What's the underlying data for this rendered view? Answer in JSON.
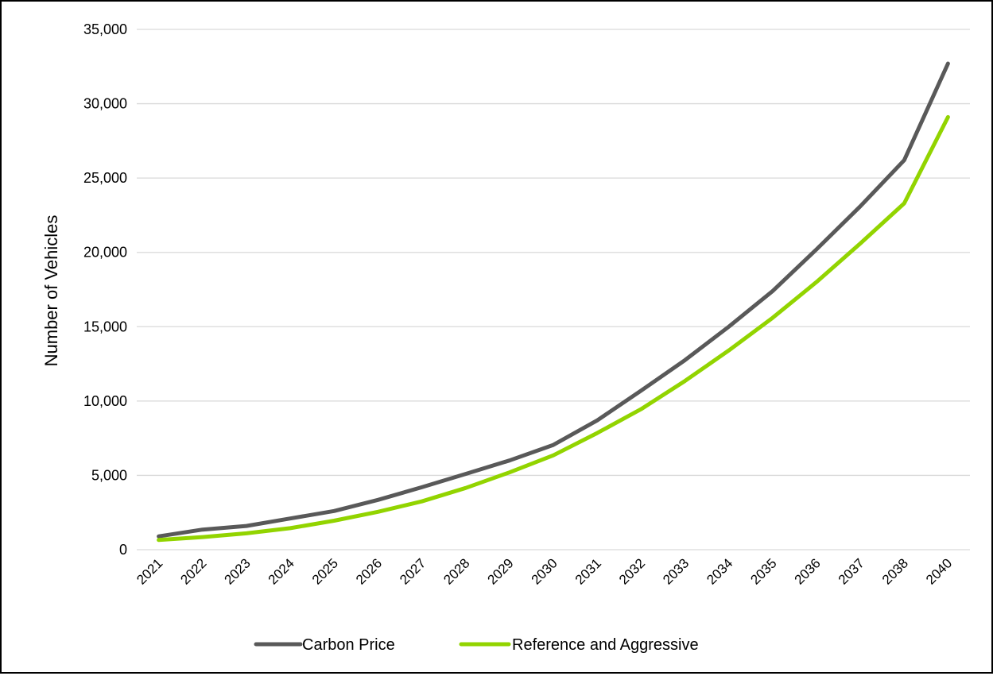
{
  "chart_data": {
    "type": "line",
    "title": "",
    "xlabel": "",
    "ylabel": "Number  of Vehicles",
    "categories": [
      "2021",
      "2022",
      "2023",
      "2024",
      "2025",
      "2026",
      "2027",
      "2028",
      "2029",
      "2030",
      "2031",
      "2032",
      "2033",
      "2034",
      "2035",
      "2036",
      "2037",
      "2038",
      "2040"
    ],
    "ylim": [
      0,
      35000
    ],
    "yticks": [
      0,
      5000,
      10000,
      15000,
      20000,
      25000,
      30000,
      35000
    ],
    "ytick_labels": [
      "0",
      "5,000",
      "10,000",
      "15,000",
      "20,000",
      "25,000",
      "30,000",
      "35,000"
    ],
    "grid": true,
    "legend_position": "bottom",
    "series": [
      {
        "name": "Carbon Price",
        "color": "#595959",
        "values": [
          900,
          1350,
          1600,
          2100,
          2600,
          3350,
          4200,
          5100,
          6000,
          7050,
          8700,
          10700,
          12750,
          15000,
          17400,
          20200,
          23100,
          26200,
          32700
        ]
      },
      {
        "name": "Reference and Aggressive",
        "color": "#92D400",
        "values": [
          650,
          850,
          1100,
          1450,
          1950,
          2550,
          3250,
          4150,
          5200,
          6350,
          7850,
          9450,
          11350,
          13400,
          15600,
          18000,
          20600,
          23300,
          29100
        ]
      }
    ]
  }
}
